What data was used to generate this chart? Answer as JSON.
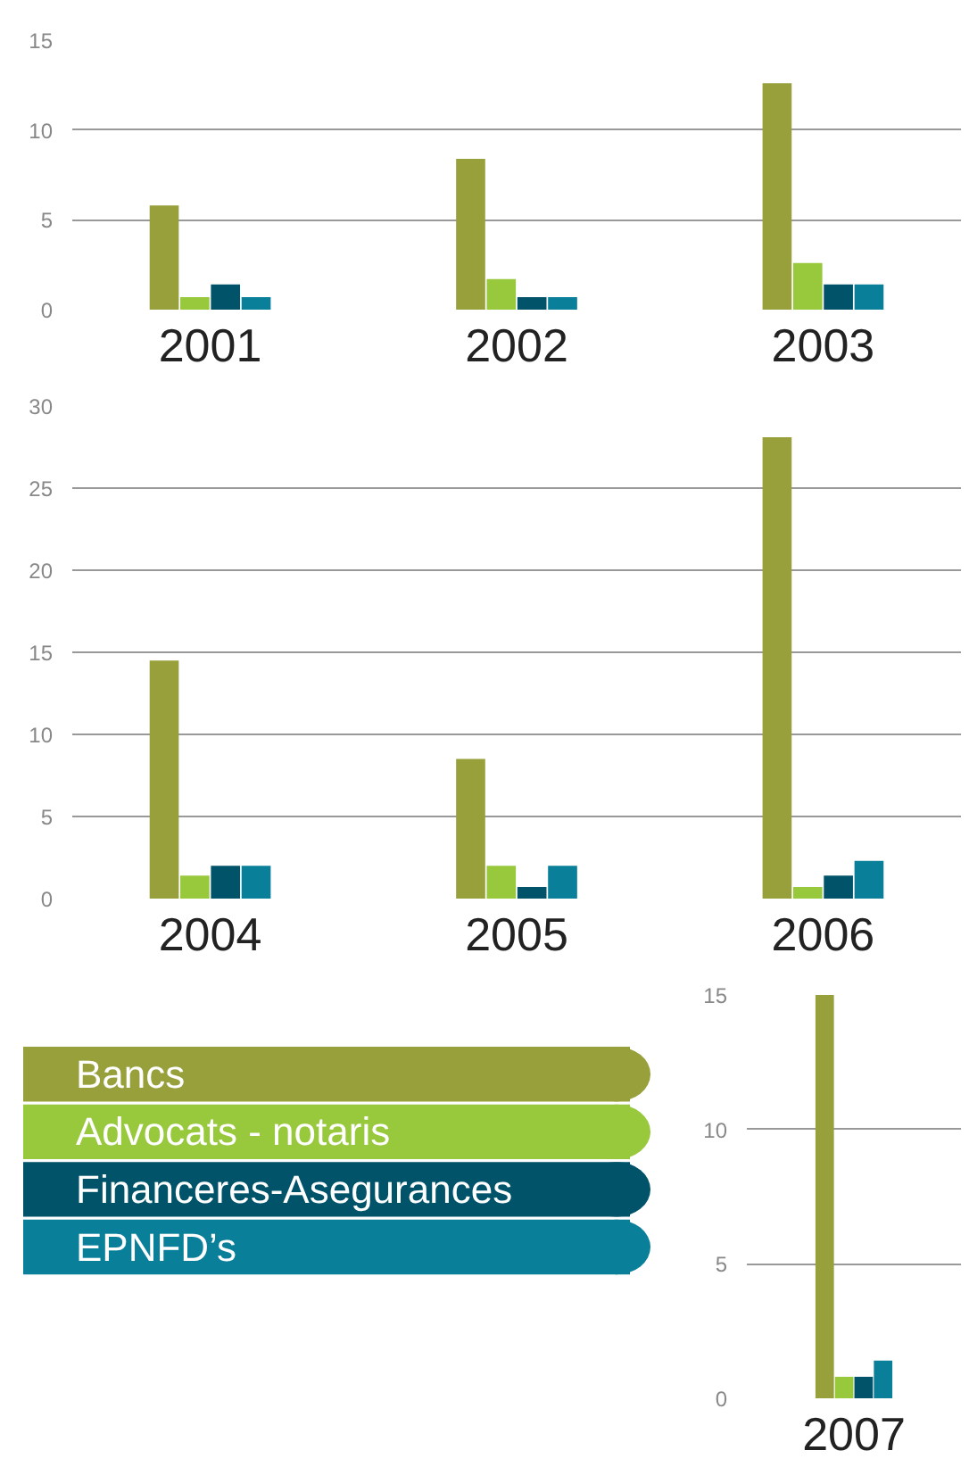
{
  "chart_data": [
    {
      "type": "bar",
      "categories": [
        "2001",
        "2002",
        "2003"
      ],
      "ylim": [
        0,
        15
      ],
      "yticks": [
        0,
        5,
        10,
        15
      ],
      "grid": "y",
      "series": [
        {
          "color": "#97a03a",
          "values": [
            5.8,
            8.4,
            12.6
          ]
        },
        {
          "color": "#98c83c",
          "values": [
            0.7,
            1.7,
            2.6
          ]
        },
        {
          "color": "#01536a",
          "values": [
            1.4,
            0.7,
            1.4
          ]
        },
        {
          "color": "#0a7f99",
          "values": [
            0.7,
            0.7,
            1.4
          ]
        }
      ]
    },
    {
      "type": "bar",
      "categories": [
        "2004",
        "2005",
        "2006"
      ],
      "ylim": [
        0,
        30
      ],
      "yticks": [
        0,
        5,
        10,
        15,
        20,
        25,
        30
      ],
      "grid": "y",
      "series": [
        {
          "color": "#97a03a",
          "values": [
            14.5,
            8.5,
            28.1
          ]
        },
        {
          "color": "#98c83c",
          "values": [
            1.4,
            2,
            0.7
          ]
        },
        {
          "color": "#01536a",
          "values": [
            2,
            0.7,
            1.4
          ]
        },
        {
          "color": "#0a7f99",
          "values": [
            2,
            2,
            2.3
          ]
        }
      ]
    },
    {
      "type": "bar",
      "categories": [
        "2007"
      ],
      "ylim": [
        0,
        15
      ],
      "yticks": [
        0,
        5,
        10,
        15
      ],
      "grid": "y",
      "legend": "left",
      "series": [
        {
          "name": "Bancs",
          "color": "#97a03a",
          "values": [
            15
          ]
        },
        {
          "name": "Advocats - notaris",
          "color": "#98c83c",
          "values": [
            0.8
          ]
        },
        {
          "name": "Financeres-Asegurances",
          "color": "#01536a",
          "values": [
            0.8
          ]
        },
        {
          "name": "EPNFD’s",
          "color": "#0a7f99",
          "values": [
            1.4
          ]
        }
      ]
    }
  ]
}
